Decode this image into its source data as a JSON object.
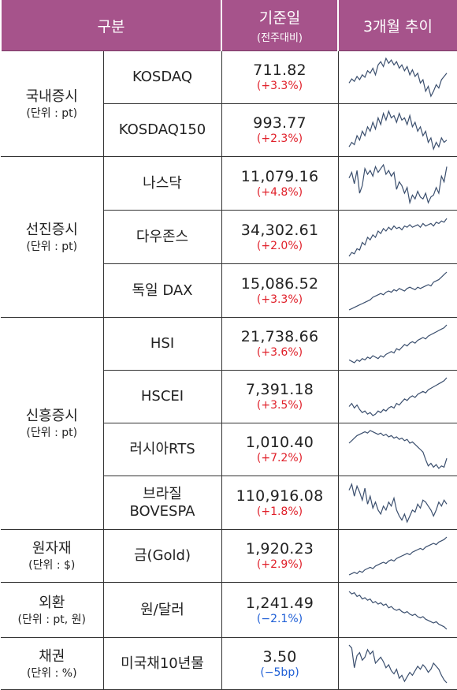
{
  "header": {
    "category": "구분",
    "base_date": "기준일",
    "base_date_sub": "(전주대비)",
    "trend": "3개월 추이"
  },
  "rows": [
    {
      "name": "KOSDAQ",
      "value": "711.82",
      "change": "(+3.3%)",
      "dir": "pos",
      "trend": [
        40,
        45,
        42,
        48,
        44,
        50,
        47,
        55,
        52,
        58,
        50,
        62,
        66,
        60,
        70,
        64,
        68,
        62,
        66,
        58,
        62,
        55,
        60,
        50,
        56,
        48,
        52,
        40,
        44,
        30,
        36,
        24,
        30,
        38,
        34,
        44,
        48,
        52
      ]
    },
    {
      "name": "KOSDAQ150",
      "value": "993.77",
      "change": "(+2.3%)",
      "dir": "pos",
      "trend": [
        30,
        34,
        32,
        40,
        36,
        44,
        40,
        48,
        44,
        52,
        46,
        56,
        50,
        60,
        54,
        62,
        56,
        58,
        52,
        60,
        54,
        56,
        50,
        58,
        48,
        52,
        44,
        48,
        40,
        44,
        34,
        38,
        28,
        34,
        30,
        38,
        34,
        36
      ]
    },
    {
      "name": "나스닥",
      "value": "11,079.16",
      "change": "(+4.8%)",
      "dir": "pos",
      "trend": [
        56,
        62,
        50,
        64,
        40,
        48,
        66,
        60,
        64,
        58,
        68,
        62,
        66,
        70,
        60,
        64,
        58,
        62,
        44,
        52,
        48,
        40,
        46,
        30,
        38,
        34,
        42,
        36,
        34,
        40,
        30,
        36,
        38,
        46,
        40,
        58,
        52,
        68
      ]
    },
    {
      "name": "다우존스",
      "value": "34,302.61",
      "change": "(+2.0%)",
      "dir": "pos",
      "trend": [
        10,
        16,
        14,
        22,
        20,
        32,
        28,
        40,
        36,
        44,
        40,
        50,
        46,
        54,
        50,
        56,
        52,
        58,
        54,
        56,
        52,
        58,
        56,
        60,
        56,
        58,
        60,
        56,
        62,
        58,
        60,
        62,
        58,
        64,
        62,
        66,
        64,
        70
      ]
    },
    {
      "name": "독일 DAX",
      "value": "15,086.52",
      "change": "(+3.3%)",
      "dir": "pos",
      "trend": [
        10,
        12,
        14,
        16,
        18,
        20,
        22,
        24,
        26,
        30,
        32,
        34,
        36,
        34,
        38,
        40,
        38,
        42,
        40,
        44,
        42,
        40,
        44,
        46,
        44,
        42,
        46,
        44,
        46,
        48,
        50,
        48,
        54,
        56,
        58,
        62,
        66,
        70
      ]
    },
    {
      "name": "HSI",
      "value": "21,738.66",
      "change": "(+3.6%)",
      "dir": "pos",
      "trend": [
        20,
        18,
        16,
        20,
        18,
        22,
        20,
        24,
        22,
        26,
        24,
        22,
        26,
        24,
        28,
        30,
        32,
        30,
        36,
        34,
        38,
        42,
        40,
        44,
        46,
        44,
        48,
        50,
        52,
        50,
        54,
        56,
        58,
        60,
        62,
        64,
        66,
        70
      ]
    },
    {
      "name": "HSCEI",
      "value": "7,391.18",
      "change": "(+3.5%)",
      "dir": "pos",
      "trend": [
        30,
        34,
        28,
        32,
        26,
        22,
        24,
        20,
        22,
        18,
        20,
        24,
        22,
        26,
        24,
        28,
        30,
        28,
        34,
        32,
        36,
        40,
        38,
        42,
        44,
        42,
        46,
        48,
        50,
        48,
        52,
        54,
        56,
        58,
        60,
        62,
        64,
        68
      ]
    },
    {
      "name": "러시아RTS",
      "value": "1,010.40",
      "change": "(+7.2%)",
      "dir": "pos",
      "trend": [
        50,
        54,
        58,
        62,
        64,
        66,
        68,
        66,
        70,
        68,
        66,
        64,
        66,
        62,
        64,
        60,
        62,
        58,
        60,
        56,
        58,
        54,
        56,
        50,
        52,
        48,
        44,
        40,
        36,
        24,
        14,
        18,
        12,
        16,
        10,
        14,
        12,
        26
      ]
    },
    {
      "name": "브라질",
      "name2": "BOVESPA",
      "value": "110,916.08",
      "change": "(+1.8%)",
      "dir": "pos",
      "trend": [
        60,
        66,
        54,
        64,
        58,
        50,
        62,
        46,
        54,
        42,
        48,
        40,
        36,
        44,
        40,
        48,
        44,
        52,
        40,
        34,
        30,
        36,
        28,
        34,
        40,
        38,
        46,
        42,
        50,
        48,
        44,
        40,
        34,
        40,
        48,
        44,
        50,
        46
      ]
    },
    {
      "name": "금(Gold)",
      "value": "1,920.23",
      "change": "(+2.9%)",
      "dir": "pos",
      "trend": [
        10,
        12,
        14,
        12,
        16,
        14,
        18,
        20,
        22,
        20,
        24,
        26,
        28,
        30,
        28,
        32,
        34,
        32,
        36,
        38,
        40,
        42,
        44,
        42,
        46,
        48,
        50,
        52,
        50,
        54,
        56,
        58,
        60,
        58,
        62,
        64,
        66,
        70
      ]
    },
    {
      "name": "원/달러",
      "value": "1,241.49",
      "change": "(−2.1%)",
      "dir": "neg",
      "trend": [
        70,
        66,
        68,
        62,
        64,
        58,
        60,
        56,
        58,
        52,
        54,
        50,
        52,
        48,
        50,
        44,
        46,
        42,
        40,
        42,
        38,
        36,
        38,
        34,
        32,
        34,
        30,
        28,
        30,
        26,
        24,
        22,
        20,
        22,
        18,
        16,
        14,
        10
      ]
    },
    {
      "name": "미국채10년물",
      "value": "3.50",
      "change": "(−5bp)",
      "dir": "neg",
      "trend": [
        70,
        66,
        40,
        56,
        60,
        50,
        54,
        64,
        58,
        62,
        46,
        50,
        54,
        48,
        40,
        44,
        36,
        32,
        38,
        26,
        30,
        22,
        28,
        34,
        30,
        36,
        42,
        38,
        44,
        40,
        34,
        38,
        46,
        42,
        38,
        30,
        24,
        20
      ]
    }
  ],
  "groups": [
    {
      "name": "국내증시",
      "unit": "(단위 : pt)"
    },
    {
      "name": "선진증시",
      "unit": "(단위 : pt)"
    },
    {
      "name": "신흥증시",
      "unit": "(단위 : pt)"
    },
    {
      "name": "원자재",
      "unit": "(단위 : $)"
    },
    {
      "name": "외환",
      "unit": "(단위 : pt, 원)"
    },
    {
      "name": "채권",
      "unit": "(단위 : %)"
    }
  ],
  "colors": {
    "header_bg": "#a6538b",
    "positive": "#e0202a",
    "negative": "#1f5fd6",
    "sparkline": "#3b4f6e"
  }
}
